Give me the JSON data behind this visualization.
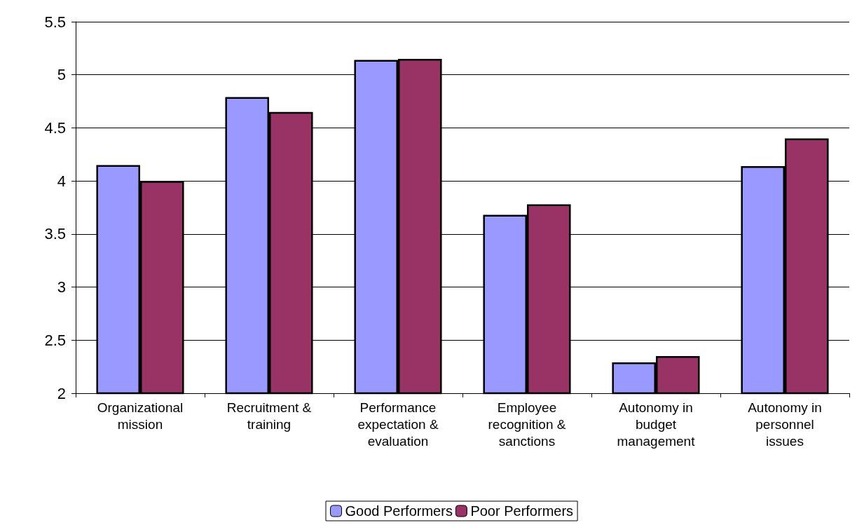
{
  "chart_data": {
    "type": "bar",
    "categories": [
      "Organizational mission",
      "Recruitment & training",
      "Performance expectation & evaluation",
      "Employee recognition & sanctions",
      "Autonomy in budget management",
      "Autonomy in personnel issues"
    ],
    "series": [
      {
        "name": "Good Performers",
        "color": "#9999ff",
        "values": [
          4.15,
          4.79,
          5.14,
          3.68,
          2.29,
          4.14
        ]
      },
      {
        "name": "Poor Performers",
        "color": "#993366",
        "values": [
          4.0,
          4.65,
          5.15,
          3.78,
          2.35,
          4.4
        ]
      }
    ],
    "ylim": [
      2,
      5.5
    ],
    "yticks": [
      2,
      2.5,
      3,
      3.5,
      4,
      4.5,
      5,
      5.5
    ],
    "grid": "y",
    "legend": "bottom"
  }
}
